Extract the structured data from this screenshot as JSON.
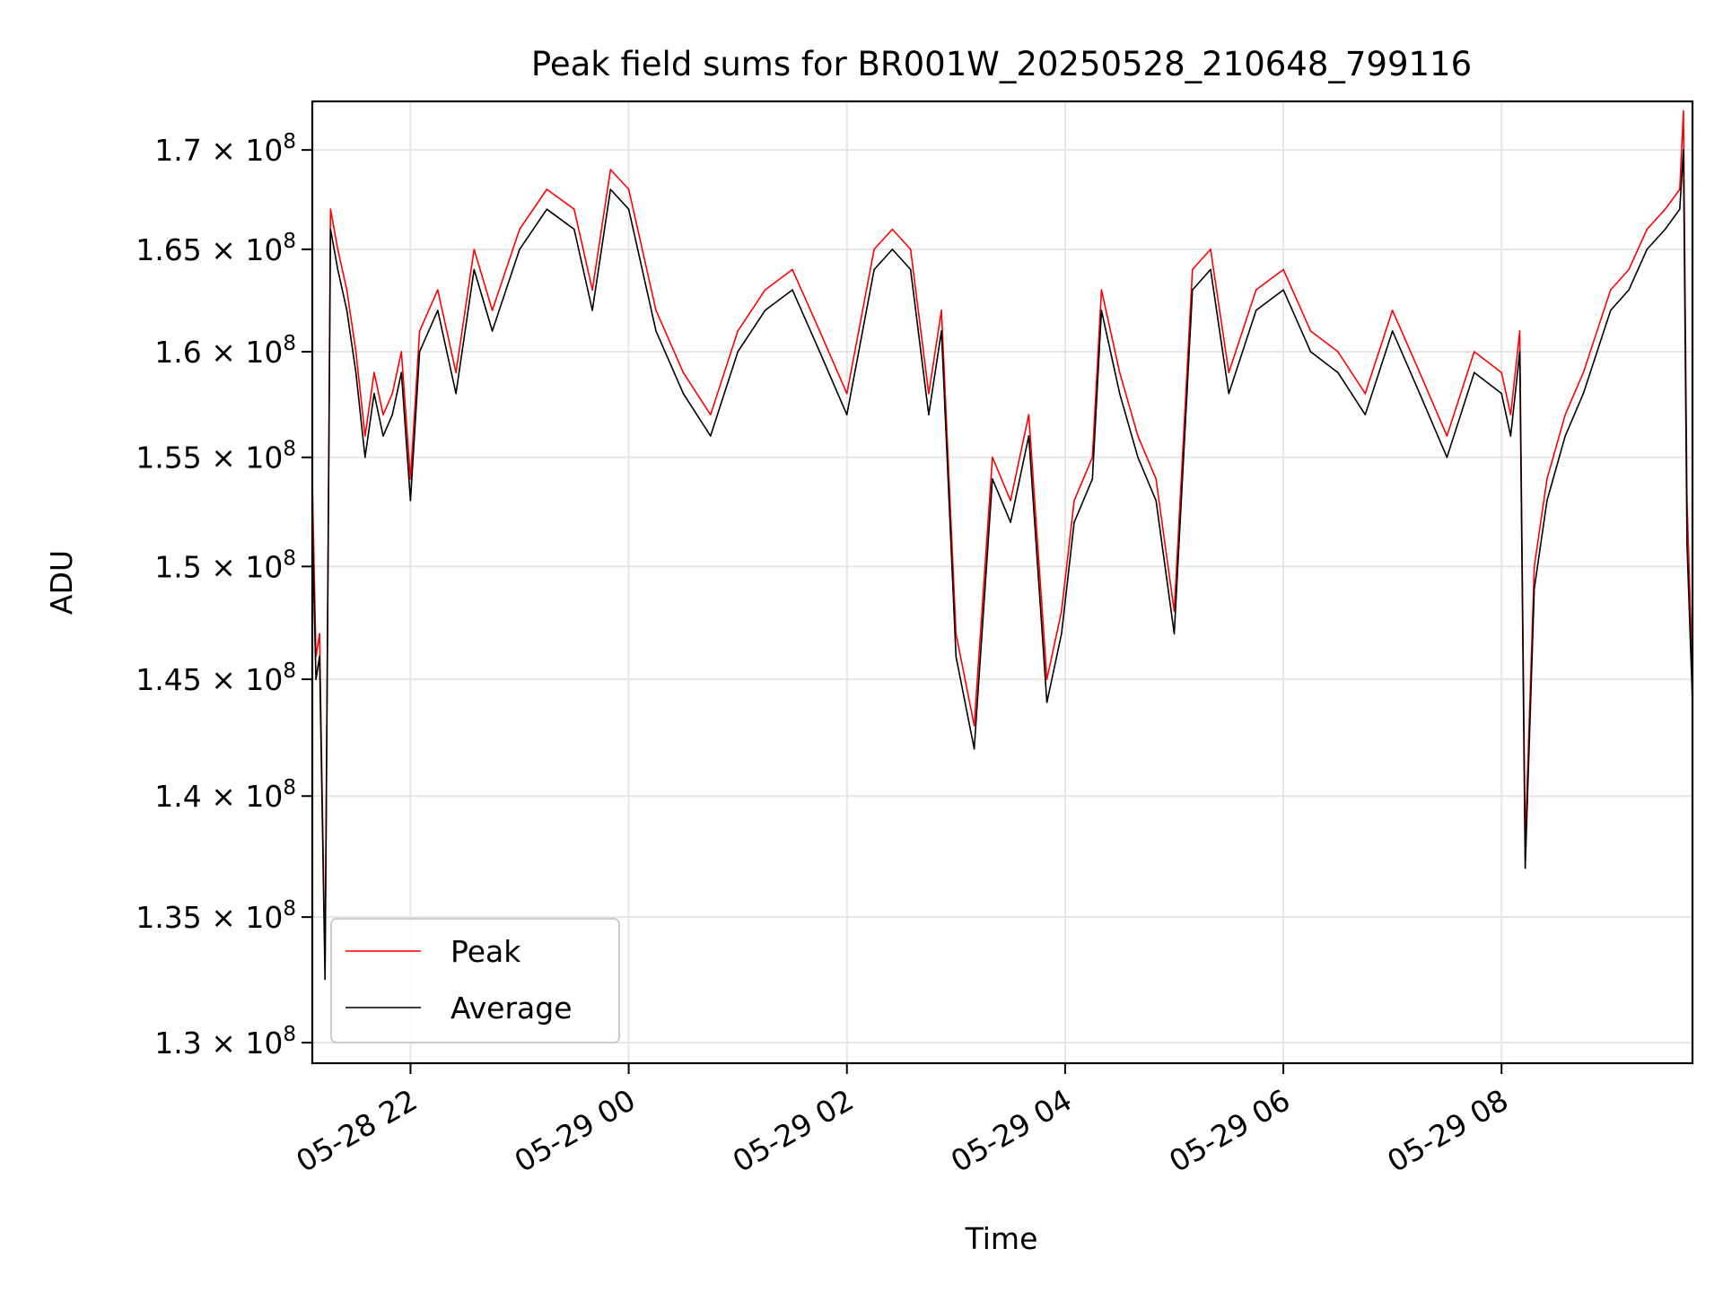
{
  "chart_data": {
    "type": "line",
    "title": "Peak field sums for BR001W_20250528_210648_799116",
    "xlabel": "Time",
    "ylabel": "ADU",
    "x_tick_labels": [
      "05-28 22",
      "05-29 00",
      "05-29 02",
      "05-29 04",
      "05-29 06",
      "05-29 08"
    ],
    "x_ticks": [
      "2025-05-28 22:00",
      "2025-05-29 00:00",
      "2025-05-29 02:00",
      "2025-05-29 04:00",
      "2025-05-29 06:00",
      "2025-05-29 08:00"
    ],
    "xlim": [
      "2025-05-28 21:06",
      "2025-05-29 09:45"
    ],
    "y_tick_labels": [
      {
        "mant": "1.3",
        "exp": "8"
      },
      {
        "mant": "1.35",
        "exp": "8"
      },
      {
        "mant": "1.4",
        "exp": "8"
      },
      {
        "mant": "1.45",
        "exp": "8"
      },
      {
        "mant": "1.5",
        "exp": "8"
      },
      {
        "mant": "1.55",
        "exp": "8"
      },
      {
        "mant": "1.6",
        "exp": "8"
      },
      {
        "mant": "1.65",
        "exp": "8"
      },
      {
        "mant": "1.7",
        "exp": "8"
      }
    ],
    "y_ticks": [
      130000000,
      135000000,
      140000000,
      145000000,
      150000000,
      155000000,
      160000000,
      165000000,
      170000000
    ],
    "ylim": [
      129200000,
      172500000
    ],
    "y_scale": "log",
    "grid": true,
    "legend": {
      "position": "lower-left",
      "entries": [
        "Peak",
        "Average"
      ]
    },
    "series": [
      {
        "name": "Peak",
        "color": "#ff0000",
        "x": [
          "2025-05-28 21:06",
          "2025-05-28 21:08",
          "2025-05-28 21:10",
          "2025-05-28 21:13",
          "2025-05-28 21:16",
          "2025-05-28 21:20",
          "2025-05-28 21:25",
          "2025-05-28 21:30",
          "2025-05-28 21:35",
          "2025-05-28 21:40",
          "2025-05-28 21:45",
          "2025-05-28 21:50",
          "2025-05-28 21:55",
          "2025-05-28 22:00",
          "2025-05-28 22:05",
          "2025-05-28 22:15",
          "2025-05-28 22:25",
          "2025-05-28 22:35",
          "2025-05-28 22:45",
          "2025-05-28 23:00",
          "2025-05-28 23:15",
          "2025-05-28 23:30",
          "2025-05-28 23:40",
          "2025-05-28 23:50",
          "2025-05-29 00:00",
          "2025-05-29 00:15",
          "2025-05-29 00:30",
          "2025-05-29 00:45",
          "2025-05-29 01:00",
          "2025-05-29 01:15",
          "2025-05-29 01:30",
          "2025-05-29 01:45",
          "2025-05-29 02:00",
          "2025-05-29 02:15",
          "2025-05-29 02:25",
          "2025-05-29 02:35",
          "2025-05-29 02:45",
          "2025-05-29 02:52",
          "2025-05-29 03:00",
          "2025-05-29 03:10",
          "2025-05-29 03:20",
          "2025-05-29 03:30",
          "2025-05-29 03:40",
          "2025-05-29 03:50",
          "2025-05-29 03:58",
          "2025-05-29 04:05",
          "2025-05-29 04:15",
          "2025-05-29 04:20",
          "2025-05-29 04:30",
          "2025-05-29 04:40",
          "2025-05-29 04:50",
          "2025-05-29 05:00",
          "2025-05-29 05:10",
          "2025-05-29 05:20",
          "2025-05-29 05:30",
          "2025-05-29 05:45",
          "2025-05-29 06:00",
          "2025-05-29 06:15",
          "2025-05-29 06:30",
          "2025-05-29 06:45",
          "2025-05-29 07:00",
          "2025-05-29 07:15",
          "2025-05-29 07:30",
          "2025-05-29 07:45",
          "2025-05-29 08:00",
          "2025-05-29 08:05",
          "2025-05-29 08:10",
          "2025-05-29 08:13",
          "2025-05-29 08:18",
          "2025-05-29 08:25",
          "2025-05-29 08:35",
          "2025-05-29 08:45",
          "2025-05-29 09:00",
          "2025-05-29 09:10",
          "2025-05-29 09:20",
          "2025-05-29 09:30",
          "2025-05-29 09:38",
          "2025-05-29 09:40",
          "2025-05-29 09:42",
          "2025-05-29 09:45"
        ],
        "values": [
          154000000,
          146000000,
          147000000,
          133000000,
          167000000,
          165000000,
          163000000,
          160000000,
          156000000,
          159000000,
          157000000,
          158000000,
          160000000,
          154000000,
          161000000,
          163000000,
          159000000,
          165000000,
          162000000,
          166000000,
          168000000,
          167000000,
          163000000,
          169000000,
          168000000,
          162000000,
          159000000,
          157000000,
          161000000,
          163000000,
          164000000,
          161000000,
          158000000,
          165000000,
          166000000,
          165000000,
          158000000,
          162000000,
          147000000,
          143000000,
          155000000,
          153000000,
          157000000,
          145000000,
          148000000,
          153000000,
          155000000,
          163000000,
          159000000,
          156000000,
          154000000,
          148000000,
          164000000,
          165000000,
          159000000,
          163000000,
          164000000,
          161000000,
          160000000,
          158000000,
          162000000,
          159000000,
          156000000,
          160000000,
          159000000,
          157000000,
          161000000,
          138000000,
          150000000,
          154000000,
          157000000,
          159000000,
          163000000,
          164000000,
          166000000,
          167000000,
          168000000,
          172000000,
          153000000,
          145000000
        ]
      },
      {
        "name": "Average",
        "color": "#000000",
        "x": [
          "2025-05-28 21:06",
          "2025-05-28 21:08",
          "2025-05-28 21:10",
          "2025-05-28 21:13",
          "2025-05-28 21:16",
          "2025-05-28 21:20",
          "2025-05-28 21:25",
          "2025-05-28 21:30",
          "2025-05-28 21:35",
          "2025-05-28 21:40",
          "2025-05-28 21:45",
          "2025-05-28 21:50",
          "2025-05-28 21:55",
          "2025-05-28 22:00",
          "2025-05-28 22:05",
          "2025-05-28 22:15",
          "2025-05-28 22:25",
          "2025-05-28 22:35",
          "2025-05-28 22:45",
          "2025-05-28 23:00",
          "2025-05-28 23:15",
          "2025-05-28 23:30",
          "2025-05-28 23:40",
          "2025-05-28 23:50",
          "2025-05-29 00:00",
          "2025-05-29 00:15",
          "2025-05-29 00:30",
          "2025-05-29 00:45",
          "2025-05-29 01:00",
          "2025-05-29 01:15",
          "2025-05-29 01:30",
          "2025-05-29 01:45",
          "2025-05-29 02:00",
          "2025-05-29 02:15",
          "2025-05-29 02:25",
          "2025-05-29 02:35",
          "2025-05-29 02:45",
          "2025-05-29 02:52",
          "2025-05-29 03:00",
          "2025-05-29 03:10",
          "2025-05-29 03:20",
          "2025-05-29 03:30",
          "2025-05-29 03:40",
          "2025-05-29 03:50",
          "2025-05-29 03:58",
          "2025-05-29 04:05",
          "2025-05-29 04:15",
          "2025-05-29 04:20",
          "2025-05-29 04:30",
          "2025-05-29 04:40",
          "2025-05-29 04:50",
          "2025-05-29 05:00",
          "2025-05-29 05:10",
          "2025-05-29 05:20",
          "2025-05-29 05:30",
          "2025-05-29 05:45",
          "2025-05-29 06:00",
          "2025-05-29 06:15",
          "2025-05-29 06:30",
          "2025-05-29 06:45",
          "2025-05-29 07:00",
          "2025-05-29 07:15",
          "2025-05-29 07:30",
          "2025-05-29 07:45",
          "2025-05-29 08:00",
          "2025-05-29 08:05",
          "2025-05-29 08:10",
          "2025-05-29 08:13",
          "2025-05-29 08:18",
          "2025-05-29 08:25",
          "2025-05-29 08:35",
          "2025-05-29 08:45",
          "2025-05-29 09:00",
          "2025-05-29 09:10",
          "2025-05-29 09:20",
          "2025-05-29 09:30",
          "2025-05-29 09:38",
          "2025-05-29 09:40",
          "2025-05-29 09:42",
          "2025-05-29 09:45"
        ],
        "values": [
          152000000,
          145000000,
          146000000,
          132500000,
          166000000,
          164000000,
          162000000,
          159000000,
          155000000,
          158000000,
          156000000,
          157000000,
          159000000,
          153000000,
          160000000,
          162000000,
          158000000,
          164000000,
          161000000,
          165000000,
          167000000,
          166000000,
          162000000,
          168000000,
          167000000,
          161000000,
          158000000,
          156000000,
          160000000,
          162000000,
          163000000,
          160000000,
          157000000,
          164000000,
          165000000,
          164000000,
          157000000,
          161000000,
          146000000,
          142000000,
          154000000,
          152000000,
          156000000,
          144000000,
          147000000,
          152000000,
          154000000,
          162000000,
          158000000,
          155000000,
          153000000,
          147000000,
          163000000,
          164000000,
          158000000,
          162000000,
          163000000,
          160000000,
          159000000,
          157000000,
          161000000,
          158000000,
          155000000,
          159000000,
          158000000,
          156000000,
          160000000,
          137000000,
          149000000,
          153000000,
          156000000,
          158000000,
          162000000,
          163000000,
          165000000,
          166000000,
          167000000,
          170000000,
          151000000,
          144000000
        ]
      }
    ]
  }
}
